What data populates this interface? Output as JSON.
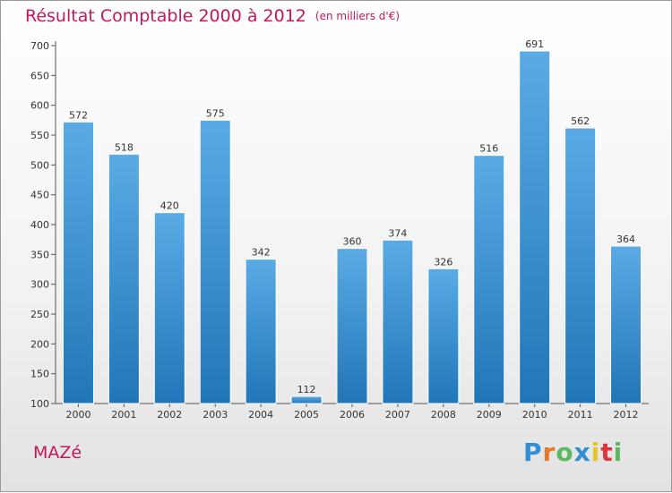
{
  "header": {
    "title": "Résultat Comptable 2000 à 2012",
    "subtitle": "(en milliers d'€)"
  },
  "footer": {
    "place": "MAZé"
  },
  "logo": {
    "letters": [
      "P",
      "r",
      "o",
      "x",
      "i",
      "t",
      "i"
    ],
    "colors": [
      "#2f8fd6",
      "#e8762c",
      "#5cb85c",
      "#2f8fd6",
      "#e8c22c",
      "#d9363e",
      "#5cb85c"
    ]
  },
  "colors": {
    "bar_top": "#5aabe5",
    "bar_bottom": "#2176b8",
    "axis": "#555555",
    "title": "#c2185b"
  },
  "chart_data": {
    "type": "bar",
    "title": "Résultat Comptable 2000 à 2012",
    "xlabel": "",
    "ylabel": "",
    "categories": [
      "2000",
      "2001",
      "2002",
      "2003",
      "2004",
      "2005",
      "2006",
      "2007",
      "2008",
      "2009",
      "2010",
      "2011",
      "2012"
    ],
    "values": [
      572,
      518,
      420,
      575,
      342,
      112,
      360,
      374,
      326,
      516,
      691,
      562,
      364
    ],
    "ylim": [
      100,
      700
    ],
    "yticks": [
      100,
      150,
      200,
      250,
      300,
      350,
      400,
      450,
      500,
      550,
      600,
      650,
      700
    ],
    "grid": false
  }
}
